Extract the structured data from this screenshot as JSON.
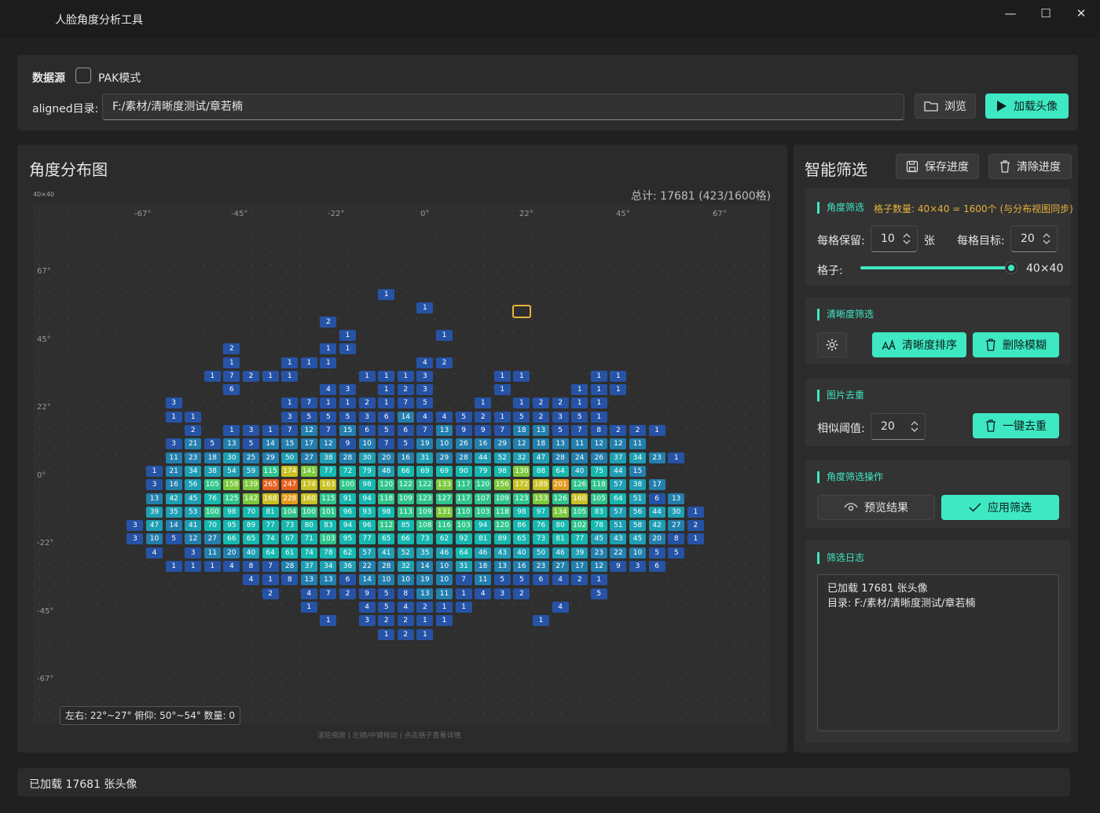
{
  "app": {
    "title": "人脸角度分析工具",
    "minimize": "—",
    "maximize": "☐",
    "close": "✕"
  },
  "source": {
    "section_label": "数据源",
    "pak_label": "PAK模式",
    "pak_checked": false,
    "dir_label": "aligned目录:",
    "dir_value": "F:/素材/清晰度测试/章若楠",
    "browse_label": "浏览",
    "load_label": "加载头像"
  },
  "chart_panel": {
    "title": "角度分布图",
    "grid_tag": "40×40",
    "total": "总计: 17681 (423/1600格)",
    "tooltip": "左右: 22°~27° 俯仰: 50°~54° 数量: 0",
    "hint": "滚轮缩放 | 左键/中键拖动 | 点击格子查看详情"
  },
  "chart_data": {
    "type": "heatmap",
    "grid": "40×40",
    "x_ticks": [
      "-67°",
      "-45°",
      "-22°",
      "0°",
      "22°",
      "45°",
      "67°"
    ],
    "y_ticks": [
      "67°",
      "45°",
      "22°",
      "0°",
      "-22°",
      "-45°",
      "-67°"
    ],
    "highlight_cell": {
      "col": 25,
      "row": 7
    },
    "rows": [
      {
        "row": 6,
        "start": 18,
        "values": [
          1
        ]
      },
      {
        "row": 7,
        "start": 20,
        "values": [
          1
        ]
      },
      {
        "row": 8,
        "start": 15,
        "values": [
          2
        ]
      },
      {
        "row": 9,
        "start": 16,
        "values": [
          1,
          null,
          null,
          null,
          null,
          1
        ]
      },
      {
        "row": 10,
        "start": 10,
        "values": [
          2,
          null,
          null,
          null,
          null,
          1,
          1
        ]
      },
      {
        "row": 11,
        "start": 10,
        "values": [
          1,
          null,
          null,
          1,
          1,
          1,
          null,
          null,
          null,
          null,
          4,
          2
        ]
      },
      {
        "row": 12,
        "start": 9,
        "values": [
          1,
          7,
          2,
          1,
          1,
          null,
          null,
          null,
          1,
          1,
          1,
          3,
          null,
          null,
          null,
          1,
          1,
          null,
          null,
          null,
          1,
          1
        ]
      },
      {
        "row": 13,
        "start": 10,
        "values": [
          6,
          null,
          null,
          null,
          null,
          4,
          3,
          null,
          1,
          2,
          3,
          null,
          null,
          null,
          1,
          null,
          null,
          null,
          1,
          1,
          1
        ]
      },
      {
        "row": 14,
        "start": 7,
        "values": [
          3,
          null,
          null,
          null,
          null,
          null,
          1,
          7,
          1,
          1,
          2,
          1,
          7,
          5,
          null,
          null,
          1,
          null,
          1,
          2,
          2,
          1,
          1
        ]
      },
      {
        "row": 15,
        "start": 7,
        "values": [
          1,
          1,
          null,
          null,
          null,
          null,
          3,
          5,
          5,
          5,
          3,
          6,
          14,
          4,
          4,
          5,
          2,
          1,
          5,
          2,
          3,
          5,
          1
        ]
      },
      {
        "row": 16,
        "start": 8,
        "values": [
          2,
          null,
          1,
          3,
          1,
          7,
          12,
          7,
          15,
          6,
          5,
          6,
          7,
          13,
          9,
          9,
          7,
          18,
          13,
          5,
          7,
          8,
          2,
          2,
          1
        ]
      },
      {
        "row": 17,
        "start": 7,
        "values": [
          3,
          21,
          5,
          13,
          5,
          14,
          15,
          17,
          12,
          9,
          10,
          7,
          5,
          19,
          10,
          26,
          16,
          29,
          12,
          18,
          13,
          11,
          12,
          12,
          11
        ]
      },
      {
        "row": 18,
        "start": 7,
        "values": [
          11,
          23,
          18,
          30,
          25,
          29,
          50,
          27,
          38,
          28,
          30,
          20,
          16,
          31,
          29,
          28,
          44,
          52,
          32,
          47,
          28,
          24,
          26,
          37,
          34,
          23,
          1
        ]
      },
      {
        "row": 19,
        "start": 6,
        "values": [
          1,
          21,
          34,
          38,
          54,
          59,
          115,
          174,
          141,
          77,
          72,
          79,
          48,
          66,
          69,
          69,
          90,
          79,
          98,
          130,
          88,
          64,
          40,
          75,
          44,
          15
        ]
      },
      {
        "row": 20,
        "start": 6,
        "values": [
          3,
          16,
          56,
          105,
          158,
          139,
          265,
          247,
          174,
          163,
          100,
          98,
          120,
          122,
          122,
          133,
          117,
          120,
          156,
          172,
          189,
          201,
          126,
          118,
          57,
          38,
          17
        ]
      },
      {
        "row": 21,
        "start": 6,
        "values": [
          13,
          42,
          45,
          76,
          125,
          142,
          168,
          228,
          160,
          115,
          91,
          94,
          118,
          109,
          123,
          127,
          117,
          107,
          109,
          123,
          153,
          126,
          160,
          105,
          64,
          51,
          6,
          13
        ]
      },
      {
        "row": 22,
        "start": 6,
        "values": [
          39,
          35,
          53,
          100,
          98,
          70,
          81,
          104,
          100,
          101,
          96,
          93,
          98,
          113,
          109,
          131,
          110,
          103,
          118,
          98,
          97,
          134,
          105,
          83,
          57,
          56,
          44,
          30,
          1
        ]
      },
      {
        "row": 23,
        "start": 5,
        "values": [
          3,
          47,
          14,
          41,
          70,
          95,
          89,
          77,
          73,
          80,
          83,
          94,
          96,
          112,
          85,
          108,
          116,
          103,
          94,
          120,
          86,
          76,
          80,
          102,
          78,
          51,
          58,
          42,
          27,
          2
        ]
      },
      {
        "row": 24,
        "start": 5,
        "values": [
          3,
          10,
          5,
          12,
          27,
          66,
          65,
          74,
          67,
          71,
          103,
          95,
          77,
          65,
          66,
          73,
          62,
          92,
          81,
          89,
          65,
          73,
          81,
          77,
          45,
          43,
          45,
          20,
          8,
          1
        ]
      },
      {
        "row": 25,
        "start": 6,
        "values": [
          4,
          null,
          3,
          11,
          20,
          40,
          64,
          61,
          74,
          78,
          62,
          57,
          41,
          52,
          35,
          46,
          64,
          46,
          43,
          40,
          50,
          46,
          39,
          23,
          22,
          10,
          5,
          5
        ]
      },
      {
        "row": 26,
        "start": 7,
        "values": [
          1,
          1,
          1,
          4,
          8,
          7,
          28,
          37,
          34,
          36,
          22,
          28,
          32,
          14,
          10,
          31,
          18,
          13,
          16,
          23,
          27,
          17,
          12,
          9,
          3,
          6
        ]
      },
      {
        "row": 27,
        "start": 11,
        "values": [
          4,
          1,
          8,
          13,
          13,
          6,
          14,
          10,
          10,
          19,
          10,
          7,
          11,
          5,
          5,
          6,
          4,
          2,
          1
        ]
      },
      {
        "row": 28,
        "start": 12,
        "values": [
          2,
          null,
          4,
          7,
          2,
          9,
          5,
          8,
          13,
          11,
          1,
          4,
          3,
          2,
          null,
          null,
          null,
          5
        ]
      },
      {
        "row": 29,
        "start": 14,
        "values": [
          1,
          null,
          null,
          4,
          5,
          4,
          2,
          1,
          1,
          null,
          null,
          null,
          null,
          4
        ]
      },
      {
        "row": 30,
        "start": 15,
        "values": [
          1,
          null,
          3,
          2,
          2,
          1,
          1,
          null,
          null,
          null,
          null,
          1
        ]
      },
      {
        "row": 31,
        "start": 18,
        "values": [
          1,
          2,
          1
        ]
      }
    ]
  },
  "filter_panel": {
    "title": "智能筛选",
    "save_label": "保存进度",
    "clear_label": "清除进度",
    "angle": {
      "title": "角度筛选",
      "grid_info": "格子数量: 40×40 = 1600个 (与分布视图同步)",
      "keep_label": "每格保留:",
      "keep_value": "10",
      "keep_unit": "张",
      "target_label": "每格目标:",
      "target_value": "20",
      "grid_label": "格子:",
      "grid_value": "40×40",
      "grid_slider_fraction": 1.0
    },
    "clarity": {
      "title": "清晰度筛选",
      "sort_label": "清晰度排序",
      "delete_label": "删除模糊"
    },
    "dedup": {
      "title": "图片去重",
      "threshold_label": "相似阈值:",
      "threshold_value": "20",
      "dedup_label": "一键去重"
    },
    "ops": {
      "title": "角度筛选操作",
      "preview_label": "预览结果",
      "apply_label": "应用筛选"
    },
    "log": {
      "title": "筛选日志",
      "line1": "已加载 17681 张头像",
      "line2": "目录: F:/素材/清晰度测试/章若楠"
    }
  },
  "status": {
    "text": "已加载 17681 张头像"
  },
  "colors": {
    "accent": "#3ee8c3",
    "orange_text": "#e8b23a",
    "highlight": "#e8b23a"
  }
}
